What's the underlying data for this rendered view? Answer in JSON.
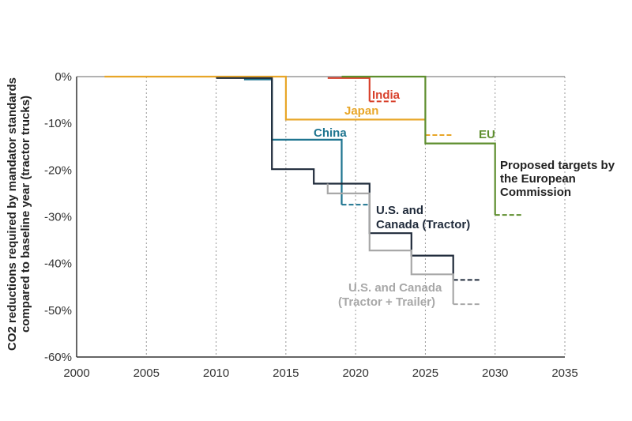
{
  "chart_data": {
    "type": "line",
    "xlim": [
      2000,
      2035
    ],
    "ylim": [
      -60,
      0
    ],
    "x_ticks": [
      "2000",
      "2005",
      "2010",
      "2015",
      "2020",
      "2025",
      "2030",
      "2035"
    ],
    "y_ticks": [
      "0%",
      "-10%",
      "-20%",
      "-30%",
      "-40%",
      "-50%",
      "-60%"
    ],
    "y_tick_values": [
      0,
      -10,
      -20,
      -30,
      -40,
      -50,
      -60
    ],
    "x_tick_values": [
      2000,
      2005,
      2010,
      2015,
      2020,
      2025,
      2030,
      2035
    ],
    "grid": "vertical",
    "ylabel_line1": "CO2 reductions required by mandator standards",
    "ylabel_line2": "compared to baseline year (tractor trucks)",
    "series": [
      {
        "name": "Japan",
        "color": "#E8A628",
        "steps": [
          [
            2002,
            0
          ],
          [
            2015,
            0
          ],
          [
            2015,
            -9.2
          ],
          [
            2025,
            -9.2
          ]
        ],
        "dashed": [
          [
            2025,
            -12.5
          ],
          [
            2027,
            -12.5
          ]
        ]
      },
      {
        "name": "India",
        "color": "#D8402B",
        "steps": [
          [
            2018,
            -0.3
          ],
          [
            2021,
            -0.3
          ],
          [
            2021,
            -5.3
          ]
        ],
        "dashed": [
          [
            2021,
            -5.3
          ],
          [
            2023,
            -5.3
          ]
        ]
      },
      {
        "name": "EU",
        "color": "#5E8E2E",
        "steps": [
          [
            2019,
            0
          ],
          [
            2025,
            0
          ],
          [
            2025,
            -14.3
          ],
          [
            2030,
            -14.3
          ],
          [
            2030,
            -29.6
          ]
        ],
        "dashed": [
          [
            2030,
            -29.6
          ],
          [
            2032,
            -29.6
          ]
        ]
      },
      {
        "name": "China",
        "color": "#1F7590",
        "steps": [
          [
            2012,
            -0.6
          ],
          [
            2014,
            -0.6
          ],
          [
            2014,
            -13.5
          ],
          [
            2019,
            -13.5
          ],
          [
            2019,
            -27.4
          ]
        ],
        "dashed": [
          [
            2019,
            -27.4
          ],
          [
            2021,
            -27.4
          ]
        ]
      },
      {
        "name": "U.S. and Canada (Tractor)",
        "color": "#1F2A3A",
        "steps": [
          [
            2010,
            -0.3
          ],
          [
            2014,
            -0.3
          ],
          [
            2014,
            -19.8
          ],
          [
            2017,
            -19.8
          ],
          [
            2017,
            -22.9
          ],
          [
            2021,
            -22.9
          ],
          [
            2021,
            -33.5
          ],
          [
            2024,
            -33.5
          ],
          [
            2024,
            -38.3
          ],
          [
            2027,
            -38.3
          ],
          [
            2027,
            -43.5
          ]
        ],
        "dashed": [
          [
            2027,
            -43.5
          ],
          [
            2029,
            -43.5
          ]
        ]
      },
      {
        "name": "U.S. and Canada (Tractor + Trailer)",
        "color": "#A8A8A8",
        "steps": [
          [
            2018,
            -22.9
          ],
          [
            2018,
            -25
          ],
          [
            2021,
            -25
          ],
          [
            2021,
            -37.2
          ],
          [
            2024,
            -37.2
          ],
          [
            2024,
            -42.3
          ],
          [
            2027,
            -42.3
          ],
          [
            2027,
            -48.7
          ]
        ],
        "dashed": [
          [
            2027,
            -48.7
          ],
          [
            2029,
            -48.7
          ]
        ]
      }
    ],
    "annotations": {
      "india": "India",
      "japan": "Japan",
      "china": "China",
      "eu": "EU",
      "proposed_line1": "Proposed targets by",
      "proposed_line2": "the European",
      "proposed_line3": "Commission",
      "us_tractor_line1": "U.S. and",
      "us_tractor_line2": "Canada (Tractor)",
      "us_trailer_line1": "U.S. and Canada",
      "us_trailer_line2": "(Tractor + Trailer)"
    }
  }
}
